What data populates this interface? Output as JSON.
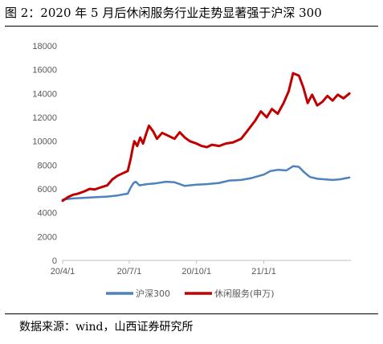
{
  "header": {
    "title": "图 2：2020 年 5 月后休闲服务行业走势显著强于沪深 300"
  },
  "footer": {
    "source": "数据来源：wind，山西证券研究所"
  },
  "chart_data": {
    "type": "line",
    "title": "",
    "xlabel": "",
    "ylabel": "",
    "ylim": [
      0,
      18000
    ],
    "yticks": [
      0,
      2000,
      4000,
      6000,
      8000,
      10000,
      12000,
      14000,
      16000,
      18000
    ],
    "xtick_labels": [
      "20/4/1",
      "20/7/1",
      "20/10/1",
      "21/1/1"
    ],
    "xtick_dates": [
      "2020-04-01",
      "2020-07-01",
      "2020-10-01",
      "2021-01-01"
    ],
    "xlim": [
      "2020-04-01",
      "2021-04-30"
    ],
    "grid": false,
    "legend_position": "bottom",
    "series": [
      {
        "name": "沪深300",
        "color": "#4f81bd",
        "points": [
          [
            "2020-04-01",
            5100
          ],
          [
            "2020-04-15",
            5200
          ],
          [
            "2020-05-01",
            5250
          ],
          [
            "2020-05-15",
            5300
          ],
          [
            "2020-06-01",
            5350
          ],
          [
            "2020-06-15",
            5450
          ],
          [
            "2020-06-29",
            5600
          ],
          [
            "2020-07-03",
            6100
          ],
          [
            "2020-07-07",
            6500
          ],
          [
            "2020-07-10",
            6600
          ],
          [
            "2020-07-15",
            6300
          ],
          [
            "2020-07-25",
            6400
          ],
          [
            "2020-08-05",
            6450
          ],
          [
            "2020-08-20",
            6600
          ],
          [
            "2020-09-01",
            6550
          ],
          [
            "2020-09-15",
            6250
          ],
          [
            "2020-10-01",
            6350
          ],
          [
            "2020-10-15",
            6400
          ],
          [
            "2020-11-01",
            6500
          ],
          [
            "2020-11-15",
            6700
          ],
          [
            "2020-12-01",
            6750
          ],
          [
            "2020-12-15",
            6900
          ],
          [
            "2021-01-01",
            7200
          ],
          [
            "2021-01-10",
            7500
          ],
          [
            "2021-01-20",
            7600
          ],
          [
            "2021-02-01",
            7550
          ],
          [
            "2021-02-10",
            7900
          ],
          [
            "2021-02-18",
            7850
          ],
          [
            "2021-02-25",
            7400
          ],
          [
            "2021-03-05",
            7000
          ],
          [
            "2021-03-15",
            6850
          ],
          [
            "2021-03-25",
            6800
          ],
          [
            "2021-04-05",
            6750
          ],
          [
            "2021-04-15",
            6800
          ],
          [
            "2021-04-28",
            6950
          ]
        ]
      },
      {
        "name": "休闲服务(申万)",
        "color": "#c00000",
        "points": [
          [
            "2020-04-01",
            5000
          ],
          [
            "2020-04-08",
            5300
          ],
          [
            "2020-04-15",
            5500
          ],
          [
            "2020-04-22",
            5600
          ],
          [
            "2020-05-01",
            5800
          ],
          [
            "2020-05-08",
            6000
          ],
          [
            "2020-05-15",
            5950
          ],
          [
            "2020-05-22",
            6100
          ],
          [
            "2020-06-01",
            6300
          ],
          [
            "2020-06-08",
            6800
          ],
          [
            "2020-06-15",
            7100
          ],
          [
            "2020-06-22",
            7300
          ],
          [
            "2020-06-29",
            7500
          ],
          [
            "2020-07-03",
            8500
          ],
          [
            "2020-07-06",
            9500
          ],
          [
            "2020-07-08",
            10000
          ],
          [
            "2020-07-12",
            9600
          ],
          [
            "2020-07-16",
            10300
          ],
          [
            "2020-07-20",
            9800
          ],
          [
            "2020-07-24",
            10600
          ],
          [
            "2020-07-28",
            11300
          ],
          [
            "2020-08-03",
            10800
          ],
          [
            "2020-08-08",
            10200
          ],
          [
            "2020-08-15",
            10700
          ],
          [
            "2020-08-22",
            10500
          ],
          [
            "2020-09-01",
            10200
          ],
          [
            "2020-09-08",
            10750
          ],
          [
            "2020-09-15",
            10300
          ],
          [
            "2020-09-22",
            10000
          ],
          [
            "2020-10-01",
            9800
          ],
          [
            "2020-10-08",
            9600
          ],
          [
            "2020-10-15",
            9500
          ],
          [
            "2020-10-22",
            9700
          ],
          [
            "2020-11-01",
            9600
          ],
          [
            "2020-11-10",
            9800
          ],
          [
            "2020-11-20",
            9900
          ],
          [
            "2020-12-01",
            10200
          ],
          [
            "2020-12-10",
            10900
          ],
          [
            "2020-12-20",
            11700
          ],
          [
            "2020-12-28",
            12500
          ],
          [
            "2021-01-05",
            12000
          ],
          [
            "2021-01-12",
            12700
          ],
          [
            "2021-01-20",
            12300
          ],
          [
            "2021-01-28",
            13200
          ],
          [
            "2021-02-04",
            14200
          ],
          [
            "2021-02-10",
            15700
          ],
          [
            "2021-02-18",
            15500
          ],
          [
            "2021-02-24",
            14500
          ],
          [
            "2021-03-02",
            13200
          ],
          [
            "2021-03-08",
            13900
          ],
          [
            "2021-03-15",
            13000
          ],
          [
            "2021-03-22",
            13300
          ],
          [
            "2021-03-29",
            13800
          ],
          [
            "2021-04-05",
            13400
          ],
          [
            "2021-04-12",
            13900
          ],
          [
            "2021-04-20",
            13600
          ],
          [
            "2021-04-28",
            14000
          ]
        ]
      }
    ]
  }
}
